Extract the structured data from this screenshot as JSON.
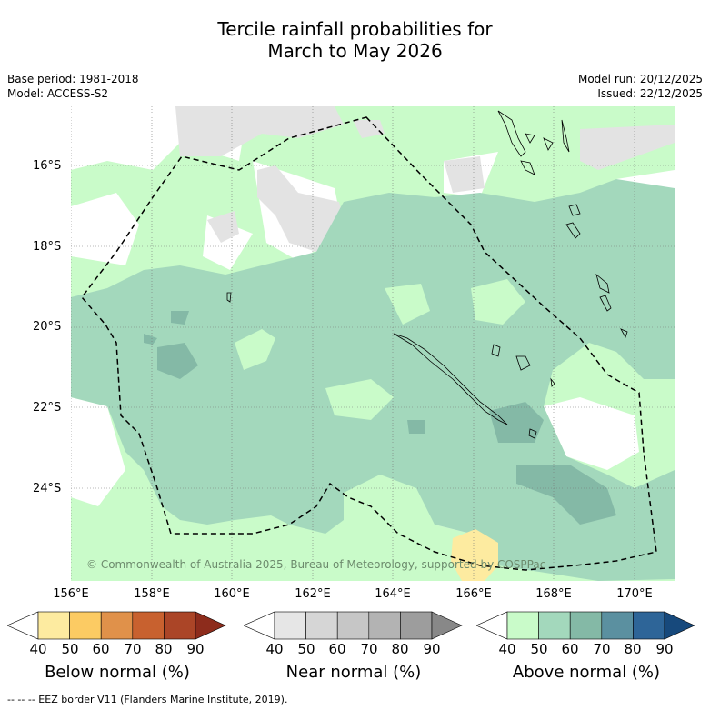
{
  "header": {
    "title_line1": "Tercile rainfall probabilities for",
    "title_line2": "March to May 2026",
    "base_period": "Base period: 1981-2018",
    "model": "Model: ACCESS-S2",
    "model_run": "Model run: 20/12/2025",
    "issued": "Issued: 22/12/2025"
  },
  "map": {
    "lat_labels": [
      "16°S",
      "18°S",
      "20°S",
      "22°S",
      "24°S"
    ],
    "lon_labels": [
      "156°E",
      "158°E",
      "160°E",
      "162°E",
      "164°E",
      "166°E",
      "168°E",
      "170°E"
    ],
    "copyright": "© Commonwealth of Australia 2025, Bureau of Meteorology, supported by COSPPac",
    "eez_style": "dashed black line",
    "gridlines": true
  },
  "colorbars": [
    {
      "title": "Below normal (%)",
      "ticks": [
        "40",
        "50",
        "60",
        "70",
        "80",
        "90"
      ],
      "colors": [
        "#ffffff",
        "#fdeba0",
        "#fccb63",
        "#e0914a",
        "#c8612f",
        "#ab4527",
        "#8d2c1c"
      ]
    },
    {
      "title": "Near normal (%)",
      "ticks": [
        "40",
        "50",
        "60",
        "70",
        "80",
        "90"
      ],
      "colors": [
        "#ffffff",
        "#e6e6e6",
        "#d6d6d6",
        "#c6c6c6",
        "#b3b3b3",
        "#9d9d9d",
        "#888888"
      ]
    },
    {
      "title": "Above normal (%)",
      "ticks": [
        "40",
        "50",
        "60",
        "70",
        "80",
        "90"
      ],
      "colors": [
        "#ffffff",
        "#c9fbc9",
        "#a3d8bc",
        "#84b9a6",
        "#5b90a0",
        "#2e6598",
        "#17497c"
      ]
    }
  ],
  "footer": {
    "legend_text": "-- -- -- EEZ border V11 (Flanders Marine Institute, 2019)."
  }
}
